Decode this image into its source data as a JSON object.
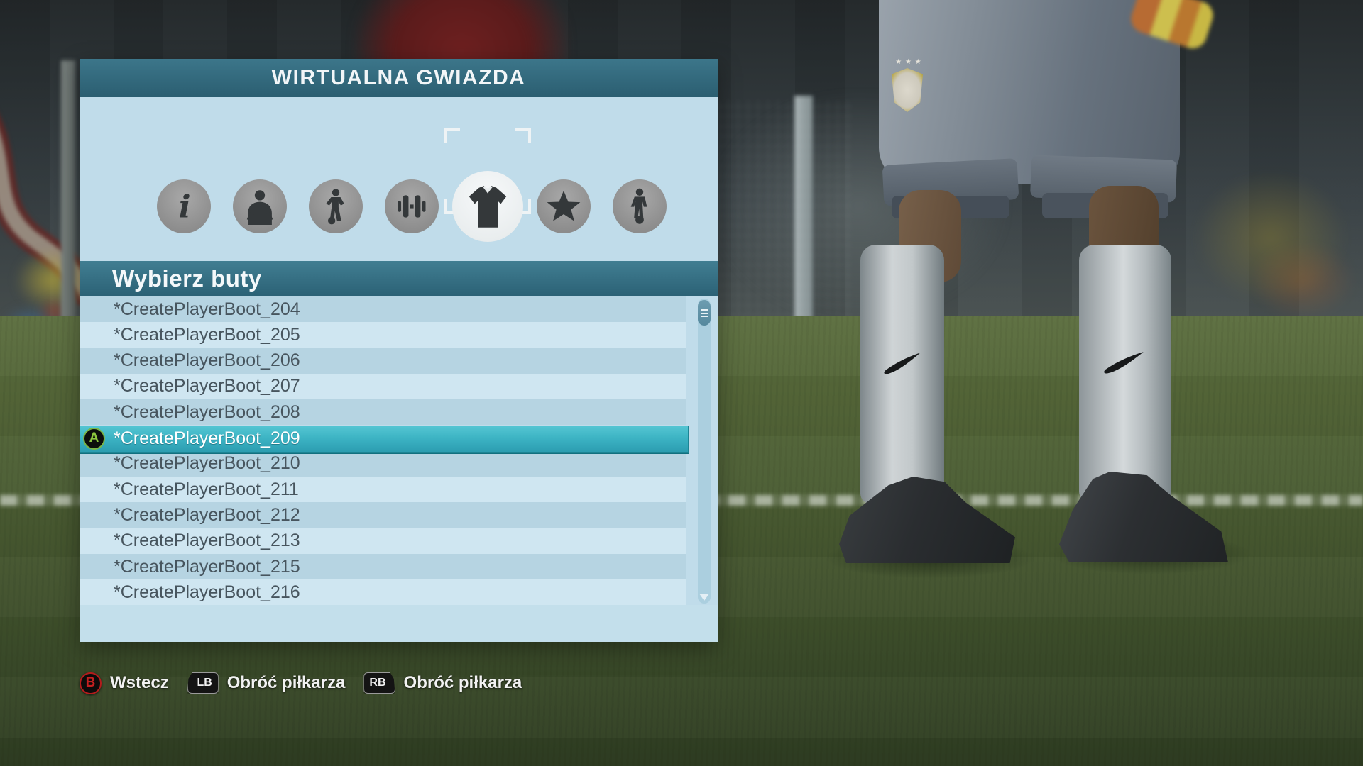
{
  "window": {
    "title": "WIRTUALNA GWIAZDA"
  },
  "tabs": [
    {
      "id": "info",
      "icon": "info-icon",
      "selected": false
    },
    {
      "id": "bust",
      "icon": "player-bust-icon",
      "selected": false
    },
    {
      "id": "body",
      "icon": "standing-player-icon",
      "selected": false
    },
    {
      "id": "training",
      "icon": "dumbbell-icon",
      "selected": false
    },
    {
      "id": "kit",
      "icon": "shirt-icon",
      "selected": true
    },
    {
      "id": "attributes",
      "icon": "star-icon",
      "selected": false
    },
    {
      "id": "gameplay",
      "icon": "player-with-ball-icon",
      "selected": false
    }
  ],
  "list": {
    "header": "Wybierz buty",
    "items": [
      {
        "label": "*CreatePlayerBoot_204",
        "selected": false
      },
      {
        "label": "*CreatePlayerBoot_205",
        "selected": false
      },
      {
        "label": "*CreatePlayerBoot_206",
        "selected": false
      },
      {
        "label": "*CreatePlayerBoot_207",
        "selected": false
      },
      {
        "label": "*CreatePlayerBoot_208",
        "selected": false
      },
      {
        "label": "*CreatePlayerBoot_209",
        "selected": true,
        "button": "A"
      },
      {
        "label": "*CreatePlayerBoot_210",
        "selected": false
      },
      {
        "label": "*CreatePlayerBoot_211",
        "selected": false
      },
      {
        "label": "*CreatePlayerBoot_212",
        "selected": false
      },
      {
        "label": "*CreatePlayerBoot_213",
        "selected": false
      },
      {
        "label": "*CreatePlayerBoot_215",
        "selected": false
      },
      {
        "label": "*CreatePlayerBoot_216",
        "selected": false
      }
    ]
  },
  "hints": [
    {
      "button": "B",
      "label": "Wstecz"
    },
    {
      "button": "LB",
      "label": "Obróć piłkarza"
    },
    {
      "button": "RB",
      "label": "Obróć piłkarza"
    }
  ],
  "cbf_stars": "★ ★ ★",
  "colors": {
    "panel": "#c0dcea",
    "title_bar": "#33687b",
    "row_dark": "#b6d4e2",
    "row_light": "#cfe6f1",
    "selected_row": "#3db4c4",
    "button_a_green": "#7ab648",
    "button_b_red": "#c42020",
    "grass": "#4c5e34"
  }
}
